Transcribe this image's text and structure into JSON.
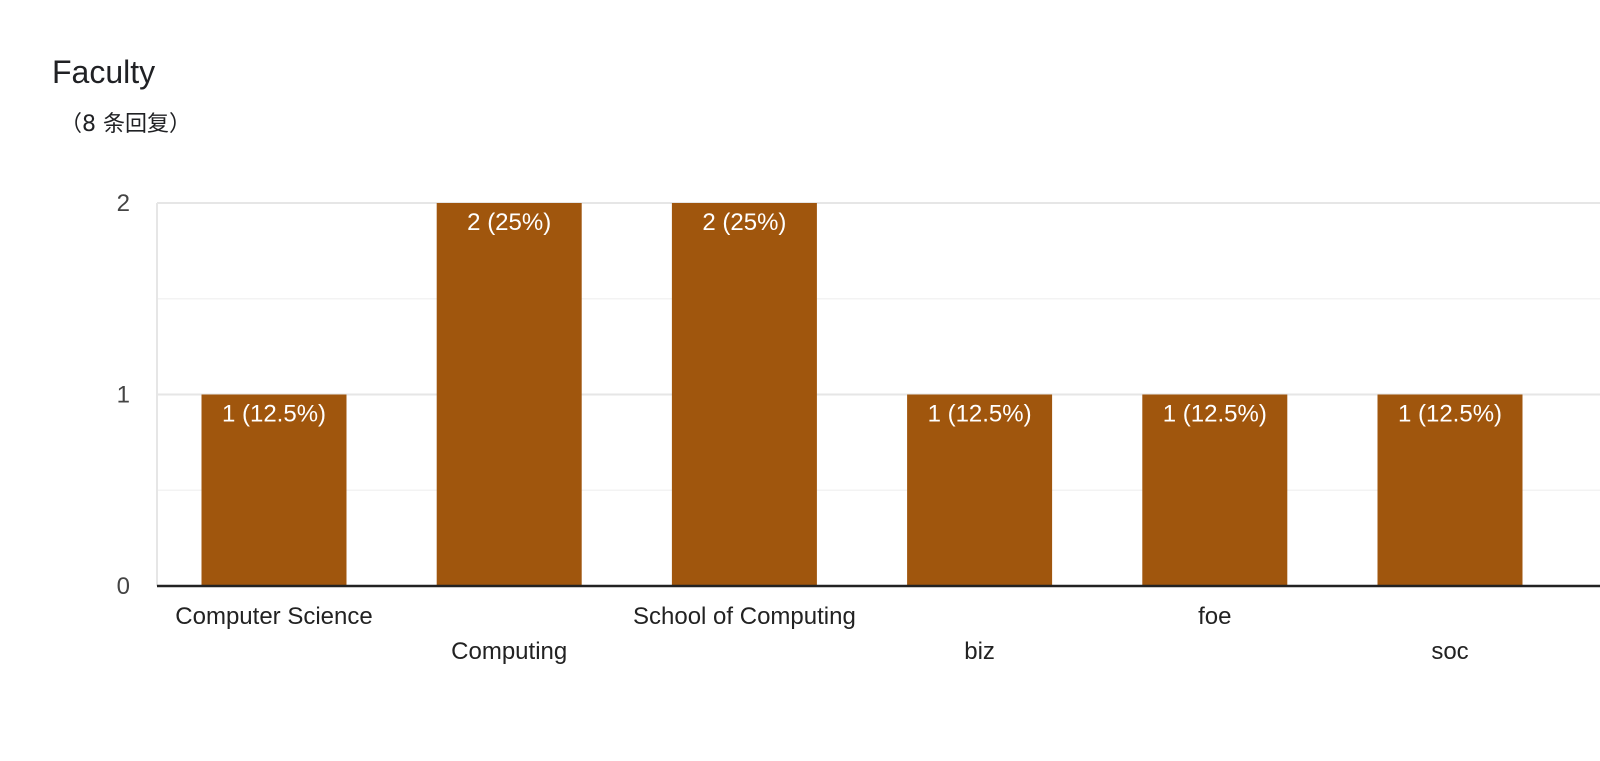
{
  "title": "Faculty",
  "subtitle": "（8 条回复）",
  "colors": {
    "bar": "#a0560d",
    "grid_major": "#e6e6e6",
    "grid_minor": "#f3f3f3",
    "axis": "#222222"
  },
  "chart_data": {
    "type": "bar",
    "title": "Faculty",
    "subtitle": "（8 条回复）",
    "categories": [
      "Computer Science",
      "Computing",
      "School of Computing",
      "biz",
      "foe",
      "soc"
    ],
    "values": [
      1,
      2,
      2,
      1,
      1,
      1
    ],
    "data_labels": [
      "1 (12.5%)",
      "2 (25%)",
      "2 (25%)",
      "1 (12.5%)",
      "1 (12.5%)",
      "1 (12.5%)"
    ],
    "y_ticks": [
      "0",
      "1",
      "2"
    ],
    "ylim": [
      0,
      2
    ],
    "grid": true,
    "legend": "none"
  }
}
